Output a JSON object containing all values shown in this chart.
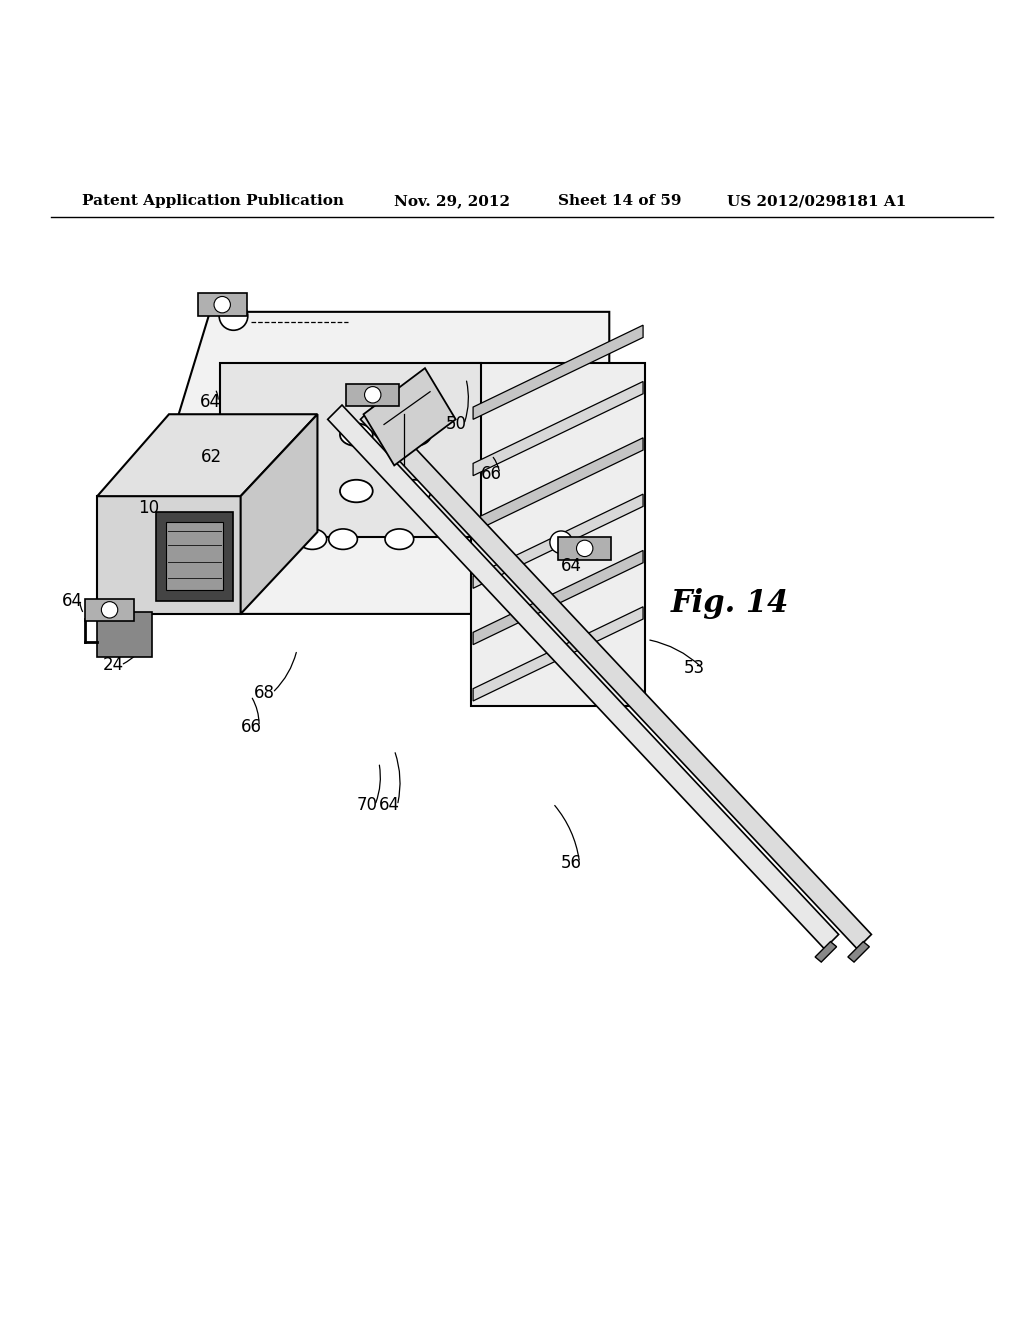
{
  "background_color": "#ffffff",
  "header_text": "Patent Application Publication",
  "header_date": "Nov. 29, 2012",
  "header_sheet": "Sheet 14 of 59",
  "header_patent": "US 2012/0298181 A1",
  "fig_label": "Fig. 14",
  "line_color": "#000000",
  "line_width": 1.5,
  "header_fontsize": 11,
  "label_fontsize": 12
}
